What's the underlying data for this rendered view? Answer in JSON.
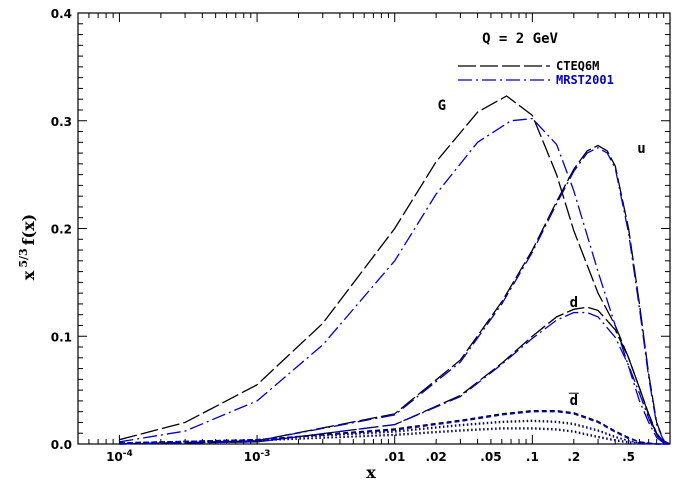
{
  "chart_data": {
    "type": "line",
    "title": "",
    "xlabel": "x",
    "ylabel": "x^{5/3} f(x)",
    "ylabel_base": "x",
    "ylabel_exp": "5/3",
    "ylabel_rest": "f(x)",
    "x_scale": "log",
    "xlim": [
      5e-05,
      1.0
    ],
    "ylim": [
      0.0,
      0.4
    ],
    "x_ticks": [
      {
        "value": 0.0001,
        "label_base": "10",
        "label_exp": "-4"
      },
      {
        "value": 0.001,
        "label_base": "10",
        "label_exp": "-3"
      },
      {
        "value": 0.01,
        "label": ".01"
      },
      {
        "value": 0.02,
        "label": ".02"
      },
      {
        "value": 0.05,
        "label": ".05"
      },
      {
        "value": 0.1,
        "label": ".1"
      },
      {
        "value": 0.2,
        "label": ".2"
      },
      {
        "value": 0.5,
        "label": ".5"
      }
    ],
    "y_ticks": [
      {
        "value": 0.0,
        "label": "0.0"
      },
      {
        "value": 0.1,
        "label": "0.1"
      },
      {
        "value": 0.2,
        "label": "0.2"
      },
      {
        "value": 0.3,
        "label": "0.3"
      },
      {
        "value": 0.4,
        "label": "0.4"
      }
    ],
    "grid": false,
    "legend_position": "top-right",
    "annotation": "Q = 2 GeV",
    "colors": {
      "cteq": "#000000",
      "mrst": "#0000cc"
    },
    "curve_labels": [
      {
        "text": "G",
        "x": 0.022,
        "y": 0.31
      },
      {
        "text": "u",
        "x": 0.62,
        "y": 0.27
      },
      {
        "text": "d",
        "x": 0.2,
        "y": 0.127
      },
      {
        "text": "d",
        "overline": true,
        "x": 0.2,
        "y": 0.036
      }
    ],
    "series": [
      {
        "name": "CTEQ6M",
        "parton": "G",
        "color": "#000000",
        "style": "long-dash",
        "x": [
          0.0001,
          0.0003,
          0.001,
          0.003,
          0.01,
          0.02,
          0.04,
          0.065,
          0.1,
          0.15,
          0.2,
          0.3,
          0.4,
          0.5,
          0.6,
          0.7,
          0.8,
          0.9,
          1.0
        ],
        "y": [
          0.004,
          0.02,
          0.055,
          0.112,
          0.2,
          0.262,
          0.308,
          0.323,
          0.305,
          0.25,
          0.198,
          0.14,
          0.11,
          0.08,
          0.052,
          0.028,
          0.01,
          0.002,
          0.0
        ]
      },
      {
        "name": "MRST2001",
        "parton": "G",
        "color": "#0000cc",
        "style": "dash-dot",
        "x": [
          0.0001,
          0.0003,
          0.001,
          0.003,
          0.01,
          0.02,
          0.04,
          0.07,
          0.1,
          0.15,
          0.2,
          0.3,
          0.4,
          0.5,
          0.6,
          0.7,
          0.8,
          0.9,
          1.0
        ],
        "y": [
          0.002,
          0.012,
          0.04,
          0.092,
          0.17,
          0.232,
          0.28,
          0.3,
          0.302,
          0.278,
          0.235,
          0.16,
          0.11,
          0.072,
          0.04,
          0.02,
          0.006,
          0.001,
          0.0
        ]
      },
      {
        "name": "CTEQ6M",
        "parton": "u",
        "color": "#000000",
        "style": "long-dash",
        "x": [
          0.0001,
          0.001,
          0.01,
          0.03,
          0.06,
          0.1,
          0.15,
          0.2,
          0.25,
          0.3,
          0.35,
          0.4,
          0.5,
          0.6,
          0.7,
          0.8,
          0.9,
          1.0
        ],
        "y": [
          0.0,
          0.003,
          0.028,
          0.078,
          0.132,
          0.18,
          0.225,
          0.255,
          0.272,
          0.277,
          0.272,
          0.258,
          0.2,
          0.13,
          0.065,
          0.02,
          0.003,
          0.0
        ]
      },
      {
        "name": "MRST2001",
        "parton": "u",
        "color": "#0000cc",
        "style": "dash-dot",
        "x": [
          0.0001,
          0.001,
          0.01,
          0.03,
          0.06,
          0.1,
          0.15,
          0.2,
          0.25,
          0.3,
          0.35,
          0.4,
          0.5,
          0.6,
          0.7,
          0.8,
          0.9,
          1.0
        ],
        "y": [
          0.0,
          0.003,
          0.027,
          0.076,
          0.13,
          0.178,
          0.223,
          0.253,
          0.27,
          0.275,
          0.27,
          0.256,
          0.196,
          0.126,
          0.062,
          0.018,
          0.003,
          0.0
        ]
      },
      {
        "name": "CTEQ6M",
        "parton": "d",
        "color": "#000000",
        "style": "long-dash",
        "x": [
          0.0001,
          0.001,
          0.01,
          0.03,
          0.06,
          0.1,
          0.15,
          0.2,
          0.25,
          0.3,
          0.4,
          0.5,
          0.6,
          0.7,
          0.8,
          0.9,
          1.0
        ],
        "y": [
          0.0,
          0.002,
          0.018,
          0.045,
          0.075,
          0.1,
          0.118,
          0.125,
          0.127,
          0.124,
          0.106,
          0.08,
          0.052,
          0.027,
          0.009,
          0.002,
          0.0
        ]
      },
      {
        "name": "MRST2001",
        "parton": "d",
        "color": "#0000cc",
        "style": "dash-dot",
        "x": [
          0.0001,
          0.001,
          0.01,
          0.03,
          0.06,
          0.1,
          0.15,
          0.2,
          0.25,
          0.3,
          0.4,
          0.5,
          0.6,
          0.7,
          0.8,
          0.9,
          1.0
        ],
        "y": [
          0.0,
          0.002,
          0.018,
          0.044,
          0.074,
          0.098,
          0.115,
          0.122,
          0.122,
          0.118,
          0.099,
          0.073,
          0.047,
          0.024,
          0.008,
          0.002,
          0.0
        ]
      },
      {
        "name": "CTEQ6M",
        "parton": "dbar",
        "color": "#000000",
        "style": "short-dash",
        "x": [
          0.0001,
          0.001,
          0.01,
          0.03,
          0.06,
          0.1,
          0.15,
          0.2,
          0.3,
          0.4,
          0.5,
          0.6,
          0.8,
          1.0
        ],
        "y": [
          0.001,
          0.004,
          0.014,
          0.022,
          0.028,
          0.031,
          0.031,
          0.029,
          0.021,
          0.012,
          0.006,
          0.002,
          0.0,
          0.0
        ]
      },
      {
        "name": "MRST2001",
        "parton": "dbar",
        "color": "#0000cc",
        "style": "short-dash",
        "x": [
          0.0001,
          0.001,
          0.01,
          0.03,
          0.06,
          0.1,
          0.15,
          0.2,
          0.3,
          0.4,
          0.5,
          0.6,
          0.8,
          1.0
        ],
        "y": [
          0.001,
          0.004,
          0.013,
          0.021,
          0.027,
          0.03,
          0.03,
          0.028,
          0.02,
          0.011,
          0.005,
          0.002,
          0.0,
          0.0
        ]
      },
      {
        "name": "CTEQ6M",
        "parton": "ubar",
        "color": "#000000",
        "style": "dotted",
        "x": [
          0.0001,
          0.001,
          0.01,
          0.03,
          0.06,
          0.1,
          0.15,
          0.2,
          0.3,
          0.4,
          0.5,
          0.6,
          0.8,
          1.0
        ],
        "y": [
          0.001,
          0.004,
          0.012,
          0.018,
          0.021,
          0.022,
          0.021,
          0.019,
          0.013,
          0.007,
          0.003,
          0.001,
          0.0,
          0.0
        ]
      },
      {
        "name": "MRST2001",
        "parton": "ubar",
        "color": "#0000cc",
        "style": "dotted",
        "x": [
          0.0001,
          0.001,
          0.01,
          0.03,
          0.06,
          0.1,
          0.15,
          0.2,
          0.3,
          0.4,
          0.5,
          0.6,
          0.8,
          1.0
        ],
        "y": [
          0.001,
          0.004,
          0.011,
          0.017,
          0.02,
          0.021,
          0.02,
          0.018,
          0.012,
          0.006,
          0.003,
          0.001,
          0.0,
          0.0
        ]
      },
      {
        "name": "CTEQ6M",
        "parton": "s",
        "color": "#000000",
        "style": "dotted",
        "x": [
          0.0001,
          0.001,
          0.01,
          0.03,
          0.06,
          0.1,
          0.15,
          0.2,
          0.3,
          0.4,
          0.5,
          0.6,
          0.8,
          1.0
        ],
        "y": [
          0.001,
          0.003,
          0.009,
          0.013,
          0.015,
          0.015,
          0.014,
          0.012,
          0.007,
          0.004,
          0.002,
          0.001,
          0.0,
          0.0
        ]
      },
      {
        "name": "MRST2001",
        "parton": "s",
        "color": "#0000cc",
        "style": "dotted",
        "x": [
          0.0001,
          0.001,
          0.01,
          0.03,
          0.06,
          0.1,
          0.15,
          0.2,
          0.3,
          0.4,
          0.5,
          0.6,
          0.8,
          1.0
        ],
        "y": [
          0.001,
          0.003,
          0.008,
          0.012,
          0.014,
          0.014,
          0.013,
          0.011,
          0.006,
          0.003,
          0.001,
          0.0,
          0.0,
          0.0
        ]
      }
    ],
    "legend": [
      {
        "label": "CTEQ6M",
        "color": "#000000",
        "style": "long-dash"
      },
      {
        "label": "MRST2001",
        "color": "#0000cc",
        "style": "dash-dot"
      }
    ]
  }
}
